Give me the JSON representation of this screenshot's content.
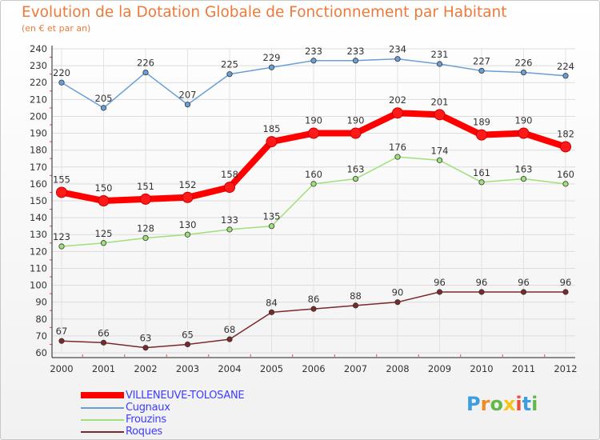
{
  "header": {
    "title": "Evolution de la Dotation Globale de Fonctionnement par Habitant",
    "subtitle": "(en € et par an)"
  },
  "logo": {
    "text": "Proxiti",
    "letter_colors": [
      "#3a9ee0",
      "#f08a24",
      "#63b84a",
      "#f5c518",
      "#e8503a",
      "#3a9ee0",
      "#63b84a"
    ]
  },
  "chart_data": {
    "type": "line",
    "title": "Evolution de la Dotation Globale de Fonctionnement par Habitant",
    "subtitle": "(en € et par an)",
    "x": [
      "2000",
      "2001",
      "2002",
      "2003",
      "2004",
      "2005",
      "2006",
      "2007",
      "2008",
      "2009",
      "2010",
      "2011",
      "2012"
    ],
    "ylim": [
      60,
      240
    ],
    "yticks": [
      60,
      70,
      80,
      90,
      100,
      110,
      120,
      130,
      140,
      150,
      160,
      170,
      180,
      190,
      200,
      210,
      220,
      230,
      240
    ],
    "grid": true,
    "legend_position": "bottom-left",
    "series": [
      {
        "name": "VILLENEUVE-TOLOSANE",
        "color": "#ff0000",
        "emphasis": true,
        "values": [
          155,
          150,
          151,
          152,
          158,
          185,
          190,
          190,
          202,
          201,
          189,
          190,
          182
        ]
      },
      {
        "name": "Cugnaux",
        "color": "#6a9fd6",
        "emphasis": false,
        "values": [
          220,
          205,
          226,
          207,
          225,
          229,
          233,
          233,
          234,
          231,
          227,
          226,
          224
        ]
      },
      {
        "name": "Frouzins",
        "color": "#9fe07a",
        "emphasis": false,
        "values": [
          123,
          125,
          128,
          130,
          133,
          135,
          160,
          163,
          176,
          174,
          161,
          163,
          160
        ]
      },
      {
        "name": "Roques",
        "color": "#7a2a2a",
        "emphasis": false,
        "values": [
          67,
          66,
          63,
          65,
          68,
          84,
          86,
          88,
          90,
          96,
          96,
          96,
          96
        ]
      }
    ]
  }
}
